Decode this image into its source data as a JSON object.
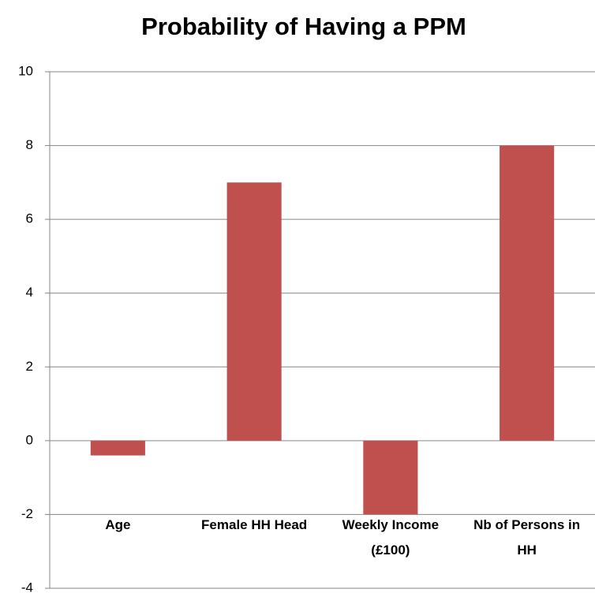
{
  "chart_data": {
    "type": "bar",
    "title": "Probability of Having a PPM",
    "categories": [
      "Age",
      "Female HH Head",
      "Weekly Income (£100)",
      "Nb of Persons in HH"
    ],
    "values": [
      -0.4,
      7,
      -2,
      8
    ],
    "color": "#c0504d",
    "ylim": [
      -4,
      10
    ],
    "yticks": [
      -4,
      -2,
      0,
      2,
      4,
      6,
      8,
      10
    ],
    "grid": true
  }
}
